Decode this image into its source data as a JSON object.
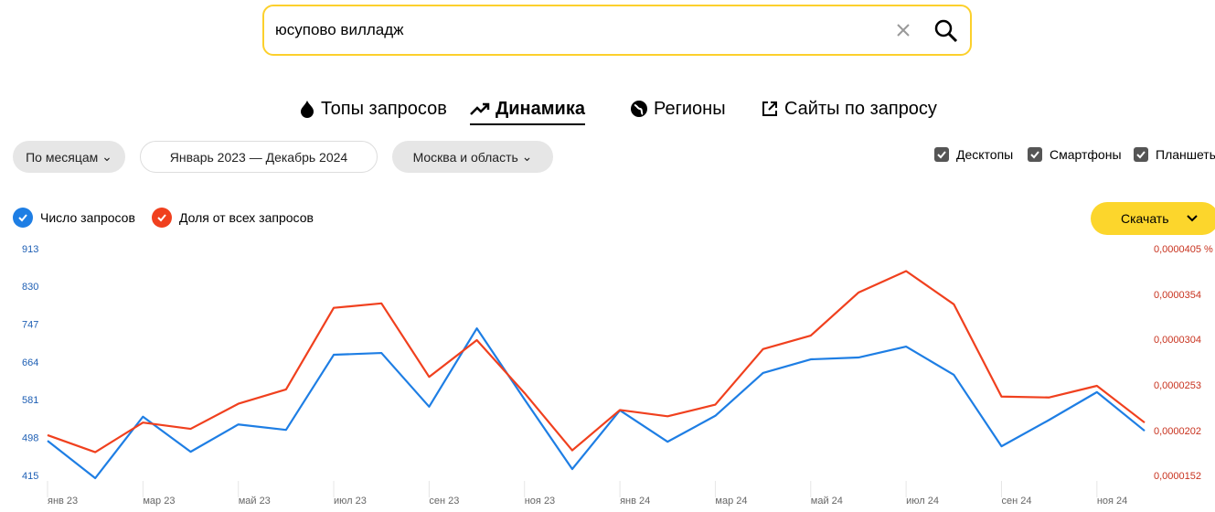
{
  "search": {
    "query": "юсупово вилладж"
  },
  "tabs": [
    "Топы запросов",
    "Динамика",
    "Регионы",
    "Сайты по запросу"
  ],
  "filters": {
    "period_type": "По месяцам",
    "range": "Январь 2023 — Декабрь 2024",
    "region": "Москва и область"
  },
  "devices": [
    "Десктопы",
    "Смартфоны",
    "Планшеты"
  ],
  "download": "Скачать",
  "chart_data": {
    "type": "line",
    "categories": [
      "янв 23",
      null,
      "мар 23",
      null,
      "май 23",
      null,
      "июл 23",
      null,
      "сен 23",
      null,
      "ноя 23",
      null,
      "янв 24",
      null,
      "мар 24",
      null,
      "май 24",
      null,
      "июл 24",
      null,
      "сен 24",
      null,
      "ноя 24",
      null
    ],
    "series": [
      {
        "name": "Число запросов",
        "color": "#1e7ee4",
        "values": [
          493,
          411,
          546,
          469,
          529,
          517,
          682,
          686,
          568,
          740,
          584,
          431,
          560,
          491,
          548,
          642,
          672,
          676,
          700,
          638,
          481,
          539,
          600,
          515
        ]
      },
      {
        "name": "Доля от всех запросов",
        "color": "#f0401e",
        "axis": "y2",
        "values": [
          1.98e-05,
          1.79e-05,
          2.12e-05,
          2.05e-05,
          2.33e-05,
          2.49e-05,
          3.4e-05,
          3.45e-05,
          2.63e-05,
          3.04e-05,
          2.45e-05,
          1.81e-05,
          2.26e-05,
          2.19e-05,
          2.32e-05,
          2.94e-05,
          3.09e-05,
          3.57e-05,
          3.81e-05,
          3.44e-05,
          2.41e-05,
          2.4e-05,
          2.53e-05,
          2.12e-05
        ]
      }
    ],
    "ylim": [
      415,
      913
    ],
    "yticks": [
      415,
      498,
      581,
      664,
      747,
      830,
      913
    ],
    "y2lim": [
      1.52e-05,
      4.05e-05
    ],
    "y2ticks": [
      {
        "value": 1.52e-05,
        "label": "0,0000152"
      },
      {
        "value": 2.02e-05,
        "label": "0,0000202"
      },
      {
        "value": 2.53e-05,
        "label": "0,0000253"
      },
      {
        "value": 3.04e-05,
        "label": "0,0000304"
      },
      {
        "value": 3.54e-05,
        "label": "0,0000354"
      },
      {
        "value": 4.05e-05,
        "label": "0,0000405 %"
      }
    ]
  }
}
